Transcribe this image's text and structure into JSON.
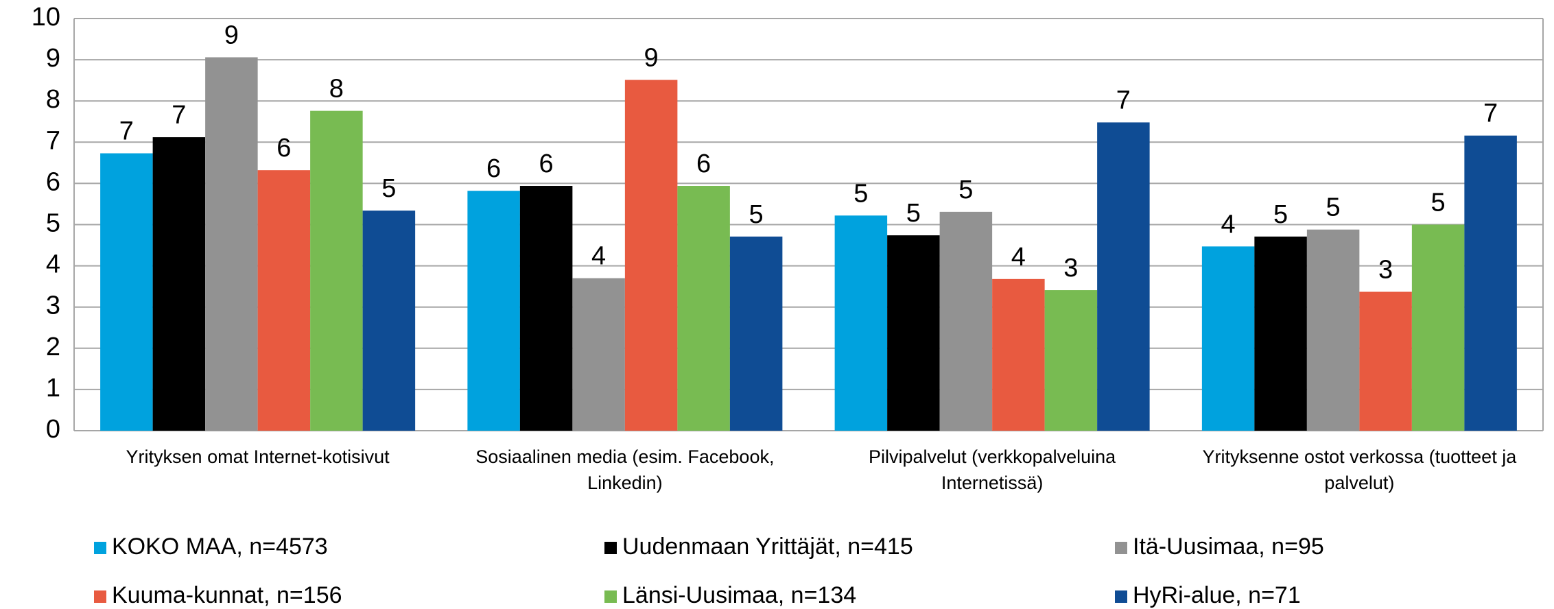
{
  "chart_data": {
    "type": "bar",
    "categories": [
      "Yrityksen omat Internet-kotisivut",
      "Sosiaalinen media (esim. Facebook, Linkedin)",
      "Pilvipalvelut  (verkkopalveluina Internetissä)",
      "Yrityksenne ostot verkossa (tuotteet ja palvelut)"
    ],
    "series": [
      {
        "name": "KOKO MAA, n=4573",
        "color": "#00a2de",
        "values": [
          6.73,
          5.82,
          5.22,
          4.47
        ],
        "value_labels": [
          "7",
          "6",
          "5",
          "4"
        ]
      },
      {
        "name": "Uudenmaan Yrittäjät, n=415",
        "color": "#000000",
        "values": [
          7.12,
          5.94,
          4.74,
          4.71
        ],
        "value_labels": [
          "7",
          "6",
          "5",
          "5"
        ]
      },
      {
        "name": "Itä-Uusimaa, n=95",
        "color": "#929292",
        "values": [
          9.06,
          3.7,
          5.31,
          4.88
        ],
        "value_labels": [
          "9",
          "4",
          "5",
          "5"
        ]
      },
      {
        "name": "Kuuma-kunnat, n=156",
        "color": "#e85a40",
        "values": [
          6.32,
          8.51,
          3.68,
          3.37
        ],
        "value_labels": [
          "6",
          "9",
          "4",
          "3"
        ]
      },
      {
        "name": "Länsi-Uusimaa, n=134",
        "color": "#78bb52",
        "values": [
          7.76,
          5.94,
          3.41,
          5.0
        ],
        "value_labels": [
          "8",
          "6",
          "3",
          "5"
        ]
      },
      {
        "name": "HyRi-alue, n=71",
        "color": "#0f4c94",
        "values": [
          5.34,
          4.71,
          7.48,
          7.16
        ],
        "value_labels": [
          "5",
          "5",
          "7",
          "7"
        ]
      }
    ],
    "ylim": [
      0,
      10
    ],
    "yticks": [
      0,
      1,
      2,
      3,
      4,
      5,
      6,
      7,
      8,
      9,
      10
    ],
    "grid": true,
    "legend": "bottom"
  }
}
